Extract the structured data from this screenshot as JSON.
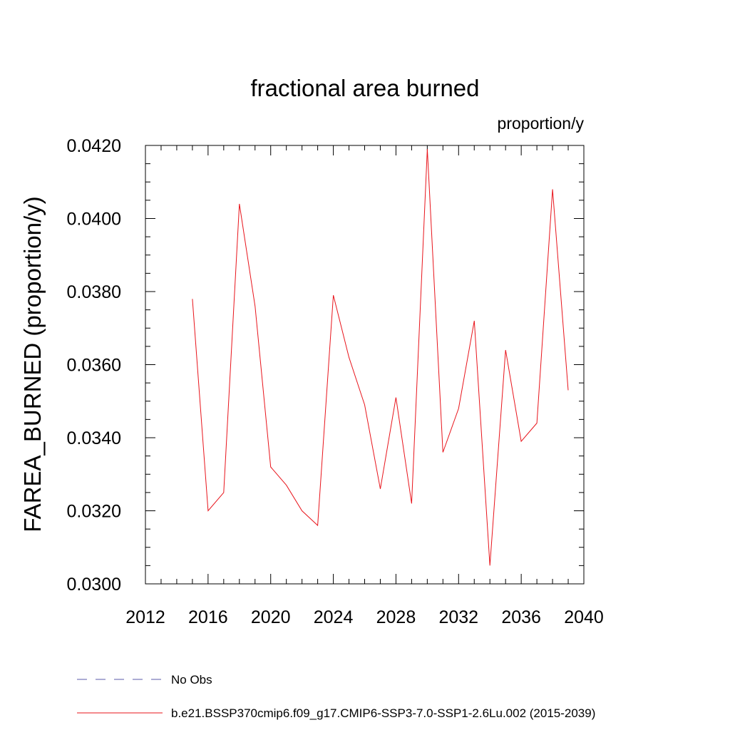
{
  "chart_data": {
    "type": "line",
    "title": "fractional area burned",
    "units_label": "proportion/y",
    "ylabel": "FAREA_BURNED  (proportion/y)",
    "xlabel": "",
    "xlim": [
      2012,
      2040
    ],
    "ylim": [
      0.03,
      0.042
    ],
    "x_ticks": [
      2012,
      2016,
      2020,
      2024,
      2028,
      2032,
      2036,
      2040
    ],
    "x_tick_labels": [
      "2012",
      "2016",
      "2020",
      "2024",
      "2028",
      "2032",
      "2036",
      "2040"
    ],
    "y_ticks": [
      0.03,
      0.032,
      0.034,
      0.036,
      0.038,
      0.04,
      0.042
    ],
    "y_tick_labels": [
      "0.0300",
      "0.0320",
      "0.0340",
      "0.0360",
      "0.0380",
      "0.0400",
      "0.0420"
    ],
    "grid": false,
    "legend_position": "bottom",
    "series": [
      {
        "name": "No Obs",
        "color": "#5a5aa8",
        "style": "dashed",
        "x": [],
        "y": []
      },
      {
        "name": "b.e21.BSSP370cmip6.f09_g17.CMIP6-SSP3-7.0-SSP1-2.6Lu.002 (2015-2039)",
        "color": "#e8141b",
        "style": "solid",
        "x": [
          2015,
          2016,
          2017,
          2018,
          2019,
          2020,
          2021,
          2022,
          2023,
          2024,
          2025,
          2026,
          2027,
          2028,
          2029,
          2030,
          2031,
          2032,
          2033,
          2034,
          2035,
          2036,
          2037,
          2038,
          2039
        ],
        "y": [
          0.0378,
          0.032,
          0.0325,
          0.0404,
          0.0376,
          0.0332,
          0.0327,
          0.032,
          0.0316,
          0.0379,
          0.0362,
          0.0349,
          0.0326,
          0.0351,
          0.0322,
          0.0419,
          0.0336,
          0.0348,
          0.0372,
          0.0305,
          0.0364,
          0.0339,
          0.0344,
          0.0408,
          0.0353
        ]
      }
    ]
  }
}
